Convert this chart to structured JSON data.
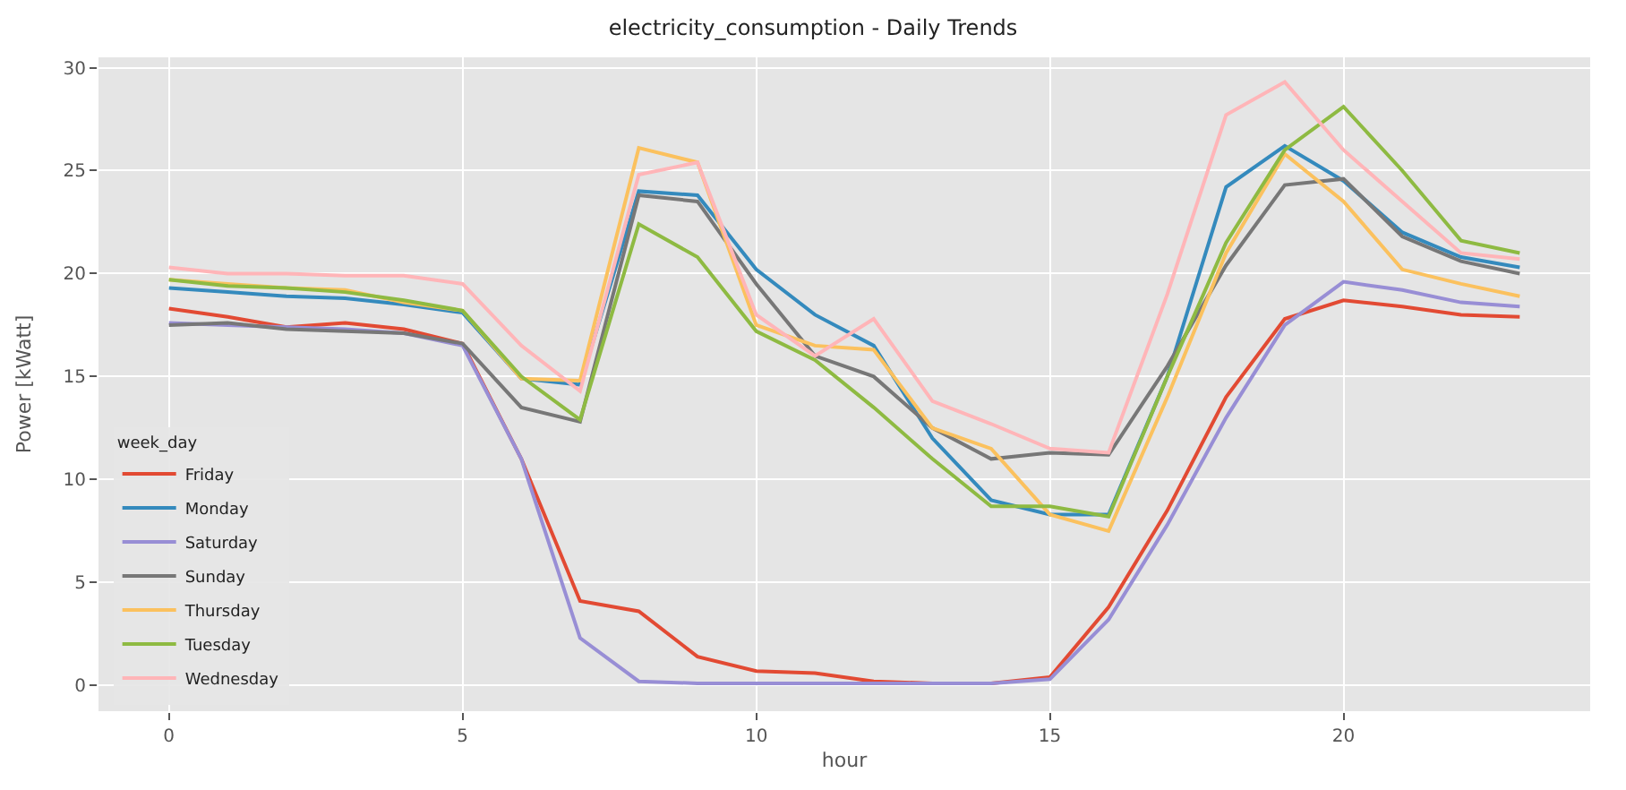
{
  "chart_data": {
    "type": "line",
    "title": "electricity_consumption - Daily Trends",
    "xlabel": "hour",
    "ylabel": "Power [kWatt]",
    "legend_title": "week_day",
    "legend": "bottom left",
    "grid": true,
    "marker": "none",
    "line_style": "solid",
    "x": [
      0,
      1,
      2,
      3,
      4,
      5,
      6,
      7,
      8,
      9,
      10,
      11,
      12,
      13,
      14,
      15,
      16,
      17,
      18,
      19,
      20,
      21,
      22,
      23
    ],
    "xlim": [
      -1.2,
      24.2
    ],
    "xticks": [
      0,
      5,
      10,
      15,
      20
    ],
    "ylim": [
      -1.25,
      30.5
    ],
    "yticks": [
      0,
      5,
      10,
      15,
      20,
      25,
      30
    ],
    "series": [
      {
        "name": "Friday",
        "color": "#e24a33",
        "values": [
          18.3,
          17.9,
          17.4,
          17.6,
          17.3,
          16.6,
          11,
          4.1,
          3.6,
          1.4,
          0.7,
          0.6,
          0.2,
          0.1,
          0.1,
          0.4,
          3.8,
          8.5,
          14,
          17.8,
          18.7,
          18.4,
          18,
          17.9
        ]
      },
      {
        "name": "Monday",
        "color": "#348abd",
        "values": [
          19.3,
          19.1,
          18.9,
          18.8,
          18.5,
          18.1,
          14.9,
          14.6,
          24,
          23.8,
          20.2,
          18,
          16.5,
          12,
          9,
          8.3,
          8.3,
          15,
          24.2,
          26.2,
          24.5,
          22,
          20.8,
          20.3
        ]
      },
      {
        "name": "Saturday",
        "color": "#988ed5",
        "values": [
          17.6,
          17.5,
          17.4,
          17.3,
          17.1,
          16.5,
          11,
          2.3,
          0.2,
          0.1,
          0.1,
          0.1,
          0.1,
          0.1,
          0.1,
          0.3,
          3.2,
          7.8,
          13,
          17.5,
          19.6,
          19.2,
          18.6,
          18.4
        ]
      },
      {
        "name": "Sunday",
        "color": "#777777",
        "values": [
          17.5,
          17.6,
          17.3,
          17.2,
          17.1,
          16.6,
          13.5,
          12.8,
          23.8,
          23.5,
          19.5,
          16,
          15,
          12.5,
          11,
          11.3,
          11.2,
          15.5,
          20.4,
          24.3,
          24.6,
          21.8,
          20.6,
          20
        ]
      },
      {
        "name": "Thursday",
        "color": "#fbc15e",
        "values": [
          19.7,
          19.5,
          19.3,
          19.2,
          18.6,
          18.2,
          14.9,
          14.8,
          26.1,
          25.4,
          17.5,
          16.5,
          16.3,
          12.5,
          11.5,
          8.3,
          7.5,
          14,
          21,
          25.8,
          23.5,
          20.2,
          19.5,
          18.9
        ]
      },
      {
        "name": "Tuesday",
        "color": "#8eba42",
        "values": [
          19.7,
          19.4,
          19.3,
          19.1,
          18.7,
          18.2,
          15,
          12.9,
          22.4,
          20.8,
          17.2,
          15.8,
          13.5,
          11,
          8.7,
          8.7,
          8.2,
          15,
          21.5,
          26,
          28.1,
          25,
          21.6,
          21
        ]
      },
      {
        "name": "Wednesday",
        "color": "#ffb5b8",
        "values": [
          20.3,
          20,
          20,
          19.9,
          19.9,
          19.5,
          16.5,
          14.3,
          24.8,
          25.4,
          18,
          16,
          17.8,
          13.8,
          12.7,
          11.5,
          11.3,
          19,
          27.7,
          29.3,
          26,
          23.5,
          21,
          20.7
        ]
      }
    ]
  }
}
